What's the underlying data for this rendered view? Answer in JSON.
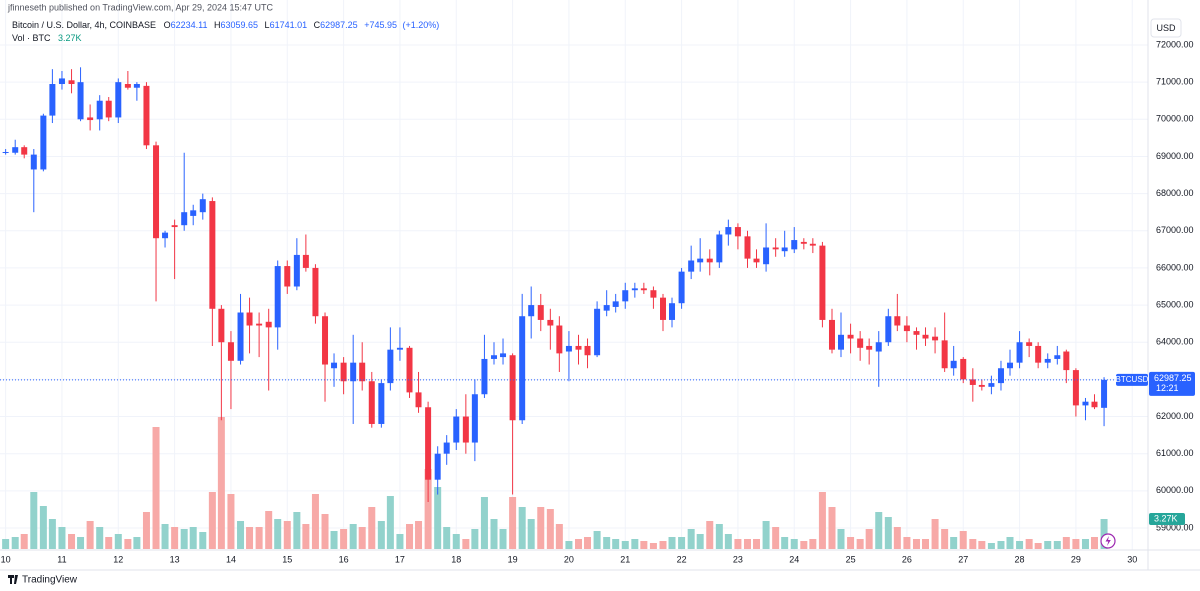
{
  "header": "jfinneseth published on TradingView.com, Apr 29, 2024 15:47 UTC",
  "footer": "TradingView",
  "chart_data": {
    "type": "candlestick",
    "symbol_title": "Bitcoin / U.S. Dollar, 4h, COINBASE",
    "ohlc_labels": [
      "O",
      "H",
      "L",
      "C"
    ],
    "change": {
      "value": 745.95,
      "label": "+745.95"
    },
    "change_percent": {
      "value": 1.2,
      "label": "(+1.20%)"
    },
    "volume_legend": "Vol · BTC",
    "volume_label": "3.27K",
    "currency": "USD",
    "price_tag_symbol": "BTCUSD",
    "countdown": "12:21",
    "up_color": "#2962ff",
    "down_color": "#f23645",
    "volume_up_color": "#92d2cc",
    "volume_down_color": "#f7a9a7",
    "x": [
      10,
      10.17,
      10.33,
      10.5,
      10.67,
      10.83,
      11,
      11.17,
      11.33,
      11.5,
      11.67,
      11.83,
      12,
      12.17,
      12.33,
      12.5,
      12.67,
      12.83,
      13,
      13.17,
      13.33,
      13.5,
      13.67,
      13.83,
      14,
      14.17,
      14.33,
      14.5,
      14.67,
      14.83,
      15,
      15.17,
      15.33,
      15.5,
      15.67,
      15.83,
      16,
      16.17,
      16.33,
      16.5,
      16.67,
      16.83,
      17,
      17.17,
      17.33,
      17.5,
      17.67,
      17.83,
      18,
      18.17,
      18.33,
      18.5,
      18.67,
      18.83,
      19,
      19.17,
      19.33,
      19.5,
      19.67,
      19.83,
      20,
      20.17,
      20.33,
      20.5,
      20.67,
      20.83,
      21,
      21.17,
      21.33,
      21.5,
      21.67,
      21.83,
      22,
      22.17,
      22.33,
      22.5,
      22.67,
      22.83,
      23,
      23.17,
      23.33,
      23.5,
      23.67,
      23.83,
      24,
      24.17,
      24.33,
      24.5,
      24.67,
      24.83,
      25,
      25.17,
      25.33,
      25.5,
      25.67,
      25.83,
      26,
      26.17,
      26.33,
      26.5,
      26.67,
      26.83,
      27,
      27.17,
      27.33,
      27.5,
      27.67,
      27.83,
      28,
      28.17,
      28.33,
      28.5,
      28.67,
      28.83,
      29,
      29.17,
      29.33,
      29.5
    ],
    "open": [
      69100,
      69100,
      69250,
      68650,
      68650,
      70100,
      70950,
      71050,
      70000,
      70050,
      70000,
      70500,
      70050,
      70950,
      70850,
      70900,
      69300,
      66800,
      67150,
      67150,
      67400,
      67500,
      67800,
      64900,
      64000,
      63500,
      64800,
      64500,
      64550,
      64400,
      66050,
      65500,
      66350,
      66000,
      64700,
      63300,
      63450,
      62950,
      63450,
      62950,
      61800,
      62900,
      63800,
      63850,
      62650,
      62250,
      60300,
      61000,
      61300,
      62000,
      61300,
      62600,
      63550,
      63600,
      63650,
      61900,
      64700,
      65000,
      64600,
      64450,
      63750,
      63900,
      63900,
      63650,
      64850,
      64950,
      65100,
      65400,
      65450,
      65400,
      65200,
      64600,
      65050,
      65900,
      66150,
      66250,
      66150,
      66900,
      67100,
      66850,
      66250,
      66100,
      66550,
      66450,
      66500,
      66700,
      66650,
      66600,
      64600,
      63800,
      64200,
      64100,
      63900,
      63750,
      64000,
      64700,
      64450,
      64300,
      64200,
      64150,
      64050,
      63300,
      63550,
      63000,
      62850,
      62800,
      62900,
      63300,
      63450,
      64000,
      63900,
      63450,
      63550,
      63750,
      63250,
      62300,
      62400,
      62234.11
    ],
    "high": [
      69200,
      69450,
      69300,
      69200,
      70150,
      71350,
      71300,
      71350,
      71400,
      70400,
      70650,
      70600,
      71100,
      71300,
      71000,
      71000,
      69400,
      67000,
      67300,
      69100,
      67700,
      68000,
      67900,
      65000,
      64300,
      65300,
      65200,
      64800,
      64900,
      66200,
      66200,
      66800,
      66900,
      66100,
      64800,
      63700,
      63600,
      64200,
      64000,
      63200,
      63000,
      64400,
      64400,
      63900,
      63200,
      62400,
      61200,
      61500,
      62200,
      62600,
      63000,
      64200,
      64000,
      64100,
      63700,
      65300,
      65500,
      65300,
      64900,
      64700,
      64300,
      64200,
      64100,
      65100,
      65400,
      65300,
      65600,
      65600,
      65600,
      65500,
      65300,
      65200,
      66000,
      66600,
      66800,
      66500,
      67000,
      67300,
      67200,
      67000,
      66500,
      67200,
      66800,
      67000,
      67100,
      66800,
      66800,
      66700,
      64900,
      64800,
      64500,
      64300,
      64100,
      64300,
      64900,
      65300,
      64700,
      64400,
      64400,
      64400,
      64800,
      63900,
      63600,
      63300,
      63000,
      63100,
      63500,
      63800,
      64300,
      64100,
      64000,
      63700,
      63900,
      63800,
      63300,
      62500,
      62600,
      63059.65
    ],
    "low": [
      69050,
      69050,
      68950,
      67500,
      68600,
      69900,
      70800,
      70700,
      69950,
      69700,
      69700,
      69950,
      69900,
      70800,
      70500,
      69200,
      65100,
      66550,
      65700,
      67000,
      67150,
      67300,
      63900,
      61900,
      62200,
      63400,
      63700,
      63600,
      62700,
      63800,
      65300,
      65400,
      65900,
      64500,
      62400,
      62800,
      62600,
      61800,
      62700,
      61700,
      61700,
      62700,
      63500,
      62500,
      62100,
      59700,
      59900,
      60700,
      61100,
      61000,
      60800,
      62500,
      63400,
      63400,
      59900,
      61800,
      64100,
      64300,
      63800,
      63200,
      62950,
      63400,
      63300,
      63600,
      64700,
      64800,
      64900,
      65200,
      65300,
      64900,
      64300,
      64400,
      64900,
      65700,
      65900,
      65800,
      66000,
      66600,
      66500,
      66000,
      66000,
      65900,
      66300,
      66300,
      66400,
      66500,
      66400,
      64400,
      63700,
      63600,
      63700,
      63500,
      63400,
      62800,
      63900,
      64300,
      64000,
      63800,
      63900,
      63700,
      63200,
      63100,
      62900,
      62400,
      62700,
      62600,
      62700,
      63100,
      63300,
      63600,
      63300,
      63300,
      63400,
      62900,
      62000,
      61900,
      62200,
      61741.01
    ],
    "close": [
      69120,
      69250,
      69050,
      69050,
      70100,
      70950,
      71100,
      70950,
      71000,
      69980,
      70500,
      70050,
      71000,
      70850,
      70950,
      69300,
      66800,
      66950,
      67100,
      67500,
      67550,
      67850,
      64900,
      64000,
      63500,
      64800,
      64450,
      64450,
      64400,
      66050,
      65500,
      66350,
      66000,
      64700,
      63400,
      63450,
      62950,
      63450,
      62950,
      61800,
      62900,
      63800,
      63850,
      62650,
      62250,
      60300,
      61000,
      61300,
      62000,
      61300,
      62600,
      63550,
      63650,
      63700,
      61900,
      64700,
      65000,
      64600,
      64450,
      63700,
      63900,
      63800,
      63650,
      64900,
      65000,
      65100,
      65400,
      65450,
      65400,
      65200,
      64600,
      65050,
      65900,
      66200,
      66250,
      66150,
      66900,
      67100,
      66850,
      66250,
      66150,
      66550,
      66500,
      66550,
      66750,
      66650,
      66600,
      64600,
      63800,
      64200,
      64100,
      63850,
      63800,
      64000,
      64700,
      64450,
      64300,
      64200,
      64100,
      64050,
      63300,
      63500,
      63000,
      62850,
      62800,
      62900,
      63300,
      63450,
      64000,
      63900,
      63450,
      63550,
      63650,
      63250,
      62300,
      62400,
      62250,
      62987.25
    ],
    "volume": [
      1090,
      1308,
      1635,
      6213,
      4687,
      3270,
      2398,
      1635,
      1308,
      3052,
      2398,
      1308,
      1635,
      1090,
      1308,
      4033,
      13298,
      2725,
      2398,
      2180,
      2398,
      1853,
      6213,
      14388,
      5995,
      3052,
      2398,
      2398,
      4142,
      3270,
      3052,
      4033,
      2725,
      5995,
      3815,
      1962,
      2180,
      2725,
      2398,
      4578,
      3052,
      5777,
      1635,
      2725,
      3052,
      8720,
      6758,
      2398,
      1635,
      1090,
      2180,
      5668,
      3270,
      2180,
      5668,
      4578,
      3270,
      4578,
      4360,
      2725,
      872,
      1090,
      1308,
      1962,
      1308,
      1090,
      872,
      1090,
      872,
      654,
      872,
      1308,
      1308,
      2180,
      1635,
      3052,
      2725,
      1635,
      1090,
      1090,
      1090,
      3052,
      2398,
      1308,
      1090,
      872,
      1090,
      6213,
      4578,
      2180,
      1308,
      1090,
      2180,
      4033,
      3488,
      2398,
      1308,
      1090,
      1090,
      3270,
      2180,
      1308,
      1962,
      1090,
      872,
      654,
      872,
      1308,
      872,
      1090,
      654,
      872,
      872,
      1308,
      1090,
      1090,
      1308,
      3270
    ],
    "xlim": [
      9.9,
      30.28
    ],
    "xticks": [
      10,
      11,
      12,
      13,
      14,
      15,
      16,
      17,
      18,
      19,
      20,
      21,
      22,
      23,
      24,
      25,
      26,
      27,
      28,
      29,
      30
    ],
    "ylim": [
      59000,
      72000
    ],
    "yticks": [
      {
        "value": 59000,
        "label": "59000.00"
      },
      {
        "value": 60000,
        "label": "60000.00"
      },
      {
        "value": 61000,
        "label": "61000.00"
      },
      {
        "value": 62000,
        "label": "62000.00"
      },
      {
        "value": 63000,
        "label": "63000.00"
      },
      {
        "value": 64000,
        "label": "64000.00"
      },
      {
        "value": 65000,
        "label": "65000.00"
      },
      {
        "value": 66000,
        "label": "66000.00"
      },
      {
        "value": 67000,
        "label": "67000.00"
      },
      {
        "value": 68000,
        "label": "68000.00"
      },
      {
        "value": 69000,
        "label": "69000.00"
      },
      {
        "value": 70000,
        "label": "70000.00"
      },
      {
        "value": 71000,
        "label": "71000.00"
      },
      {
        "value": 72000,
        "label": "72000.00"
      }
    ],
    "grid": true
  }
}
